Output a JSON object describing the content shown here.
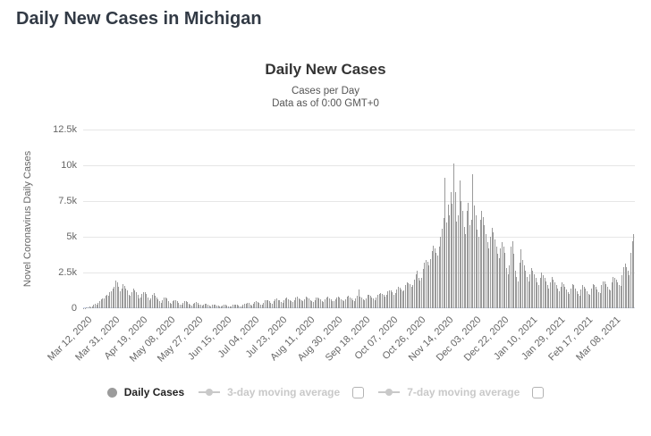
{
  "page": {
    "title": "Daily New Cases in Michigan"
  },
  "chart": {
    "title": "Daily New Cases",
    "subtitle_line1": "Cases per Day",
    "subtitle_line2": "Data as of 0:00 GMT+0",
    "y_axis_title": "Novel Coronavirus Daily Cases"
  },
  "legend": {
    "items": [
      {
        "label": "Daily Cases",
        "marker": "circle",
        "active": true,
        "has_checkbox": false
      },
      {
        "label": "3-day moving average",
        "marker": "line-dot",
        "active": false,
        "has_checkbox": true,
        "checked": false
      },
      {
        "label": "7-day moving average",
        "marker": "line-dot",
        "active": false,
        "has_checkbox": true,
        "checked": false
      }
    ]
  },
  "colors": {
    "bar": "#9a9a9a",
    "axis_line": "#ccd6eb",
    "gridline": "#e6e6e6",
    "axis_label": "#666666",
    "legend_disabled": "#c9c9c9",
    "title_text": "#323a45"
  },
  "chart_data": {
    "type": "bar",
    "title": "Daily New Cases",
    "subtitle": "Cases per Day — Data as of 0:00 GMT+0",
    "xlabel": "",
    "ylabel": "Novel Coronavirus Daily Cases",
    "ylim": [
      0,
      12500
    ],
    "y_ticks": [
      "0",
      "2.5k",
      "5k",
      "7.5k",
      "10k",
      "12.5k"
    ],
    "grid": true,
    "legend_position": "bottom",
    "start_date": "Mar 12, 2020",
    "x_tick_interval_days": 19,
    "x_tick_labels": [
      "Mar 12, 2020",
      "Mar 31, 2020",
      "Apr 19, 2020",
      "May 08, 2020",
      "May 27, 2020",
      "Jun 15, 2020",
      "Jul 04, 2020",
      "Jul 23, 2020",
      "Aug 11, 2020",
      "Aug 30, 2020",
      "Sep 18, 2020",
      "Oct 07, 2020",
      "Oct 26, 2020",
      "Nov 14, 2020",
      "Dec 03, 2020",
      "Dec 22, 2020",
      "Jan 10, 2021",
      "Jan 29, 2021",
      "Feb 17, 2021",
      "Mar 08, 2021"
    ],
    "series_name": "Daily Cases",
    "values": [
      2,
      30,
      50,
      80,
      110,
      90,
      150,
      220,
      300,
      280,
      350,
      500,
      620,
      680,
      700,
      850,
      950,
      900,
      1100,
      1200,
      1380,
      1500,
      1950,
      1800,
      1500,
      1200,
      1400,
      1700,
      1550,
      1350,
      1250,
      950,
      850,
      1100,
      1350,
      1250,
      1150,
      950,
      700,
      750,
      1000,
      1100,
      1150,
      1000,
      750,
      550,
      700,
      950,
      1050,
      900,
      780,
      620,
      480,
      380,
      580,
      720,
      780,
      680,
      520,
      380,
      320,
      480,
      540,
      580,
      480,
      380,
      280,
      220,
      380,
      480,
      520,
      420,
      320,
      220,
      200,
      320,
      380,
      420,
      380,
      280,
      220,
      160,
      260,
      320,
      300,
      240,
      160,
      130,
      220,
      270,
      240,
      200,
      160,
      110,
      100,
      200,
      240,
      220,
      190,
      150,
      120,
      110,
      220,
      270,
      250,
      220,
      180,
      140,
      130,
      240,
      300,
      320,
      380,
      350,
      270,
      160,
      320,
      430,
      480,
      450,
      380,
      270,
      220,
      380,
      540,
      590,
      540,
      480,
      380,
      320,
      480,
      640,
      700,
      590,
      540,
      430,
      380,
      540,
      700,
      750,
      640,
      590,
      480,
      430,
      590,
      750,
      800,
      700,
      640,
      540,
      480,
      640,
      800,
      750,
      700,
      590,
      510,
      450,
      590,
      730,
      770,
      680,
      600,
      510,
      460,
      600,
      750,
      790,
      700,
      620,
      530,
      470,
      620,
      750,
      800,
      730,
      640,
      560,
      480,
      640,
      810,
      860,
      770,
      680,
      590,
      510,
      660,
      860,
      1310,
      810,
      730,
      620,
      540,
      700,
      910,
      960,
      880,
      780,
      660,
      580,
      750,
      960,
      1020,
      1070,
      1020,
      910,
      800,
      960,
      1180,
      1280,
      1230,
      1120,
      960,
      1070,
      1340,
      1500,
      1440,
      1340,
      1180,
      1280,
      1600,
      1820,
      1760,
      1660,
      1500,
      1600,
      2030,
      2350,
      2600,
      2140,
      1920,
      2140,
      2780,
      3200,
      3350,
      3240,
      3030,
      3460,
      3980,
      4400,
      4190,
      3870,
      3660,
      4290,
      5020,
      5550,
      6340,
      9100,
      6020,
      7230,
      6490,
      8120,
      7330,
      10140,
      8100,
      6070,
      6500,
      8930,
      7500,
      6800,
      5700,
      5200,
      6800,
      7400,
      5800,
      6200,
      9400,
      7200,
      6500,
      5500,
      5000,
      6200,
      6800,
      6400,
      5800,
      5200,
      4600,
      4200,
      5000,
      5600,
      5300,
      4800,
      4300,
      3800,
      3500,
      4200,
      4600,
      4300,
      3900,
      2800,
      2400,
      3000,
      4300,
      4700,
      3800,
      2600,
      2200,
      1900,
      3200,
      4100,
      3400,
      3000,
      2600,
      2200,
      1900,
      2400,
      2800,
      2600,
      2400,
      2100,
      1800,
      1600,
      2100,
      2500,
      2300,
      2100,
      1900,
      1600,
      1400,
      1800,
      2200,
      2000,
      1800,
      1600,
      1400,
      1200,
      1500,
      1800,
      1700,
      1500,
      1300,
      1100,
      1000,
      1400,
      1700,
      1600,
      1400,
      1200,
      1000,
      900,
      1300,
      1600,
      1500,
      1400,
      1200,
      1000,
      950,
      1400,
      1700,
      1650,
      1500,
      1300,
      1100,
      1050,
      1600,
      1900,
      1850,
      1700,
      1500,
      1300,
      1250,
      1800,
      2200,
      2150,
      2000,
      1800,
      1600,
      1550,
      2300,
      2900,
      3100,
      2900,
      2600,
      2300,
      3900,
      4700,
      5200
    ]
  }
}
